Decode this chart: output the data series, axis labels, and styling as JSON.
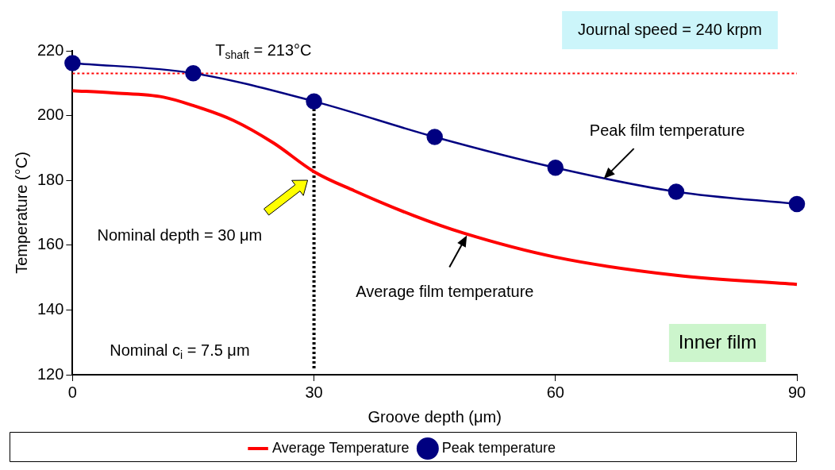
{
  "chart_data": {
    "type": "line",
    "xlabel": "Groove depth (μm)",
    "ylabel": "Temperature (°C)",
    "xlim": [
      0,
      90
    ],
    "xticks": [
      0,
      30,
      60,
      90
    ],
    "ylim": [
      120,
      220
    ],
    "yticks": [
      120,
      140,
      160,
      180,
      200,
      220
    ],
    "grid": false,
    "legend": "bottom",
    "series": [
      {
        "name": "Average Temperature",
        "color": "#ff0000",
        "marker": "none",
        "x": [
          0,
          5,
          11.3,
          15,
          20,
          25,
          30,
          35,
          42.4,
          48.6,
          60,
          75,
          90
        ],
        "values": [
          207.7,
          207.0,
          205.7,
          203.1,
          198.5,
          191.5,
          182.7,
          176.8,
          169.1,
          163.7,
          156.3,
          150.7,
          147.9
        ]
      },
      {
        "name": "Peak temperature",
        "color": "#000080",
        "marker": "circle",
        "x": [
          0,
          15,
          30,
          45,
          60,
          75,
          90
        ],
        "values": [
          216.2,
          213.1,
          204.4,
          193.4,
          183.9,
          176.5,
          172.7
        ]
      }
    ],
    "ref_lines": [
      {
        "axis": "y",
        "value": 213,
        "label": "T$_{shaft}$ = 213°C",
        "color": "#ff0000",
        "line_style": "dotted"
      },
      {
        "axis": "x",
        "value": 30,
        "color": "#000000",
        "line_style": "dotted"
      }
    ],
    "annotations": [
      "Journal speed = 240 krpm",
      "Inner film",
      "Nominal c$_{i}$ = 7.5 μm",
      "Nominal depth = 30 μm",
      {
        "text": "Peak film temperature",
        "x": 66,
        "y": 180.5
      },
      {
        "text": "Average film temperature",
        "x": 49,
        "y": 163
      }
    ]
  }
}
